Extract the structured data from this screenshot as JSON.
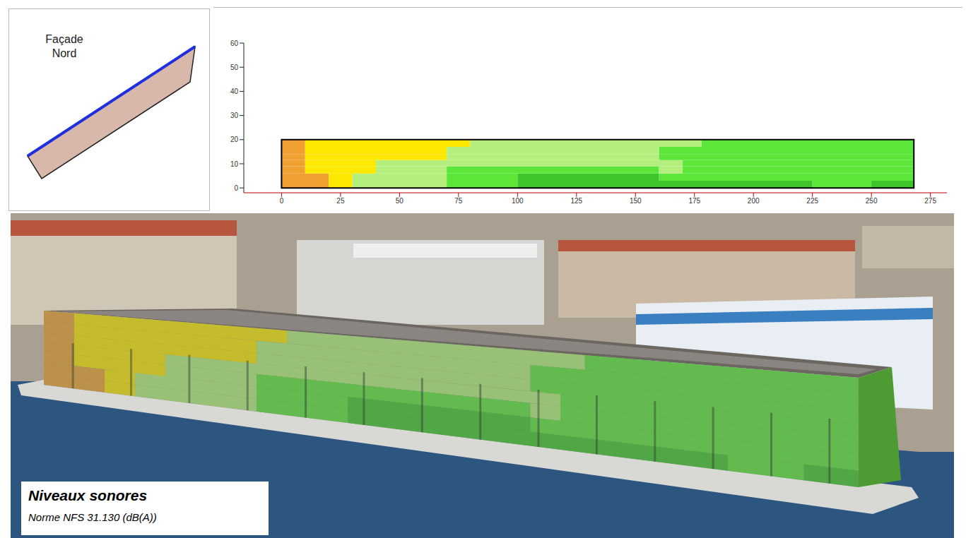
{
  "inset": {
    "label": "Façade Nord"
  },
  "caption": {
    "title": "Niveaux sonores",
    "subtitle": "Norme NFS 31.130 (dB(A))"
  },
  "chart_data": {
    "type": "facade_map",
    "xlim": [
      -16,
      282
    ],
    "xticks": [
      0,
      25,
      50,
      75,
      100,
      125,
      150,
      175,
      200,
      225,
      250,
      275
    ],
    "ylim": [
      -2,
      60
    ],
    "yticks": [
      0,
      10,
      20,
      30,
      40,
      50,
      60
    ],
    "grid": false,
    "rows": [
      {
        "y0": 0,
        "y1": 3,
        "segments": [
          {
            "x0": 0,
            "x1": 20,
            "color": "#f0a030"
          },
          {
            "x0": 20,
            "x1": 30,
            "color": "#ffe800"
          },
          {
            "x0": 30,
            "x1": 70,
            "color": "#b4ee7c"
          },
          {
            "x0": 70,
            "x1": 100,
            "color": "#5ce63a"
          },
          {
            "x0": 100,
            "x1": 225,
            "color": "#3ec52a"
          },
          {
            "x0": 225,
            "x1": 250,
            "color": "#5ce63a"
          },
          {
            "x0": 250,
            "x1": 268,
            "color": "#3ec52a"
          }
        ]
      },
      {
        "y0": 3,
        "y1": 6,
        "segments": [
          {
            "x0": 0,
            "x1": 20,
            "color": "#f0a030"
          },
          {
            "x0": 20,
            "x1": 30,
            "color": "#ffe800"
          },
          {
            "x0": 30,
            "x1": 70,
            "color": "#b4ee7c"
          },
          {
            "x0": 70,
            "x1": 100,
            "color": "#5ce63a"
          },
          {
            "x0": 100,
            "x1": 160,
            "color": "#3ec52a"
          },
          {
            "x0": 160,
            "x1": 268,
            "color": "#5ce63a"
          }
        ]
      },
      {
        "y0": 6,
        "y1": 9,
        "segments": [
          {
            "x0": 0,
            "x1": 10,
            "color": "#f0a030"
          },
          {
            "x0": 10,
            "x1": 40,
            "color": "#ffe800"
          },
          {
            "x0": 40,
            "x1": 70,
            "color": "#b4ee7c"
          },
          {
            "x0": 70,
            "x1": 160,
            "color": "#5ce63a"
          },
          {
            "x0": 160,
            "x1": 170,
            "color": "#b4ee7c"
          },
          {
            "x0": 170,
            "x1": 268,
            "color": "#5ce63a"
          }
        ]
      },
      {
        "y0": 9,
        "y1": 11.5,
        "segments": [
          {
            "x0": 0,
            "x1": 10,
            "color": "#f0a030"
          },
          {
            "x0": 10,
            "x1": 40,
            "color": "#ffe800"
          },
          {
            "x0": 40,
            "x1": 170,
            "color": "#b4ee7c"
          },
          {
            "x0": 170,
            "x1": 268,
            "color": "#5ce63a"
          }
        ]
      },
      {
        "y0": 11.5,
        "y1": 14,
        "segments": [
          {
            "x0": 0,
            "x1": 10,
            "color": "#f0a030"
          },
          {
            "x0": 10,
            "x1": 70,
            "color": "#ffe800"
          },
          {
            "x0": 70,
            "x1": 160,
            "color": "#b4ee7c"
          },
          {
            "x0": 160,
            "x1": 268,
            "color": "#5ce63a"
          }
        ]
      },
      {
        "y0": 14,
        "y1": 17,
        "segments": [
          {
            "x0": 0,
            "x1": 10,
            "color": "#f0a030"
          },
          {
            "x0": 10,
            "x1": 70,
            "color": "#ffe800"
          },
          {
            "x0": 70,
            "x1": 160,
            "color": "#b4ee7c"
          },
          {
            "x0": 160,
            "x1": 268,
            "color": "#5ce63a"
          }
        ]
      },
      {
        "y0": 17,
        "y1": 20,
        "segments": [
          {
            "x0": 0,
            "x1": 10,
            "color": "#f0a030"
          },
          {
            "x0": 10,
            "x1": 80,
            "color": "#ffe800"
          },
          {
            "x0": 80,
            "x1": 178,
            "color": "#b4ee7c"
          },
          {
            "x0": 178,
            "x1": 268,
            "color": "#5ce63a"
          }
        ]
      }
    ]
  }
}
